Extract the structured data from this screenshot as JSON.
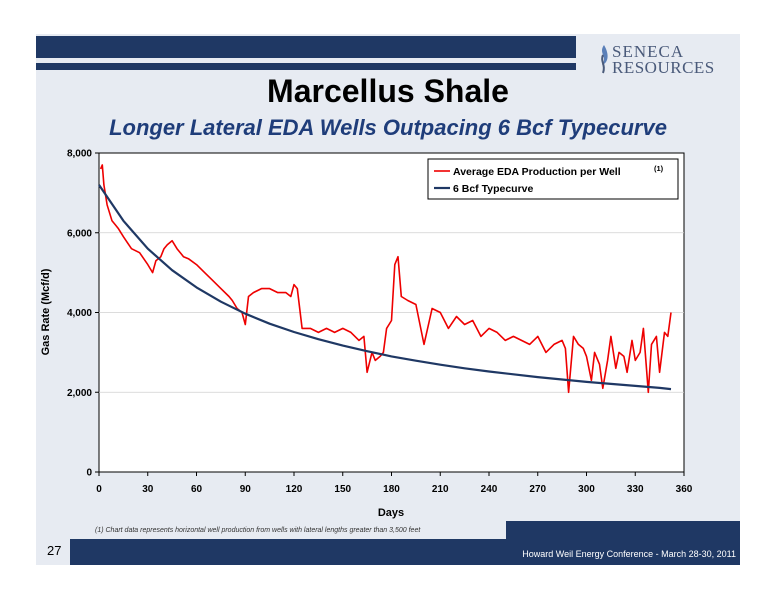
{
  "header": {
    "logo_line1": "SENECA",
    "logo_line2": "RESOURCES",
    "title": "Marcellus Shale",
    "subtitle": "Longer Lateral EDA Wells Outpacing 6 Bcf Typecurve"
  },
  "footer": {
    "footnote": "(1)     Chart data represents horizontal well production from wells with lateral lengths greater than 3,500 feet",
    "conference": "Howard Weil Energy Conference - March 28-30, 2011",
    "page_number": "27"
  },
  "colors": {
    "navy": "#1f3864",
    "production_line": "#ee0000",
    "typecurve_line": "#1f3864",
    "slide_bg": "#e7ebf2"
  },
  "chart_data": {
    "type": "line",
    "title": "",
    "xlabel": "Days",
    "ylabel": "Gas Rate (Mcf/d)",
    "xlim": [
      0,
      360
    ],
    "ylim": [
      0,
      8000
    ],
    "xticks": [
      0,
      30,
      60,
      90,
      120,
      150,
      180,
      210,
      240,
      270,
      300,
      330,
      360
    ],
    "yticks": [
      0,
      2000,
      4000,
      6000,
      8000
    ],
    "xtick_labels": [
      "0",
      "30",
      "60",
      "90",
      "120",
      "150",
      "180",
      "210",
      "240",
      "270",
      "300",
      "330",
      "360"
    ],
    "ytick_labels": [
      "0",
      "2,000",
      "4,000",
      "6,000",
      "8,000"
    ],
    "grid": "horizontal",
    "legend_position": "top-right",
    "legend_note": "(1)",
    "series": [
      {
        "name": "Average EDA Production per Well",
        "color": "#ee0000",
        "x": [
          1,
          2,
          3,
          5,
          8,
          10,
          12,
          15,
          20,
          25,
          30,
          33,
          35,
          38,
          40,
          42,
          45,
          48,
          50,
          52,
          55,
          60,
          65,
          70,
          75,
          80,
          82,
          85,
          88,
          90,
          92,
          95,
          100,
          105,
          110,
          115,
          118,
          120,
          122,
          125,
          130,
          135,
          140,
          145,
          150,
          155,
          160,
          163,
          165,
          168,
          170,
          173,
          175,
          177,
          180,
          182,
          184,
          186,
          190,
          195,
          200,
          205,
          210,
          215,
          220,
          225,
          230,
          235,
          240,
          245,
          250,
          255,
          260,
          265,
          270,
          275,
          280,
          285,
          287,
          289,
          292,
          295,
          298,
          300,
          303,
          305,
          308,
          310,
          313,
          315,
          318,
          320,
          323,
          325,
          328,
          330,
          333,
          335,
          338,
          340,
          343,
          345,
          348,
          350,
          352
        ],
        "y": [
          7600,
          7700,
          7200,
          6700,
          6300,
          6200,
          6100,
          5900,
          5600,
          5500,
          5200,
          5000,
          5300,
          5400,
          5600,
          5700,
          5800,
          5600,
          5500,
          5400,
          5350,
          5200,
          5000,
          4800,
          4600,
          4400,
          4300,
          4100,
          4000,
          3700,
          4400,
          4500,
          4600,
          4600,
          4500,
          4500,
          4400,
          4700,
          4600,
          3600,
          3600,
          3500,
          3600,
          3500,
          3600,
          3500,
          3300,
          3400,
          2500,
          3000,
          2800,
          2900,
          3000,
          3600,
          3800,
          5200,
          5400,
          4400,
          4300,
          4200,
          3200,
          4100,
          4000,
          3600,
          3900,
          3700,
          3800,
          3400,
          3600,
          3500,
          3300,
          3400,
          3300,
          3200,
          3400,
          3000,
          3200,
          3300,
          3100,
          2000,
          3400,
          3200,
          3100,
          2900,
          2300,
          3000,
          2700,
          2100,
          2800,
          3400,
          2600,
          3000,
          2900,
          2500,
          3300,
          2800,
          3000,
          3600,
          2000,
          3200,
          3400,
          2500,
          3500,
          3400,
          4000
        ]
      },
      {
        "name": "6 Bcf Typecurve",
        "color": "#1f3864",
        "x": [
          0,
          15,
          30,
          45,
          60,
          75,
          90,
          105,
          120,
          135,
          150,
          165,
          180,
          195,
          210,
          225,
          240,
          255,
          270,
          285,
          300,
          315,
          330,
          345,
          352
        ],
        "y": [
          7200,
          6300,
          5600,
          5060,
          4630,
          4270,
          3970,
          3720,
          3510,
          3330,
          3170,
          3030,
          2900,
          2790,
          2690,
          2600,
          2520,
          2450,
          2380,
          2320,
          2260,
          2210,
          2160,
          2110,
          2080
        ]
      }
    ]
  }
}
